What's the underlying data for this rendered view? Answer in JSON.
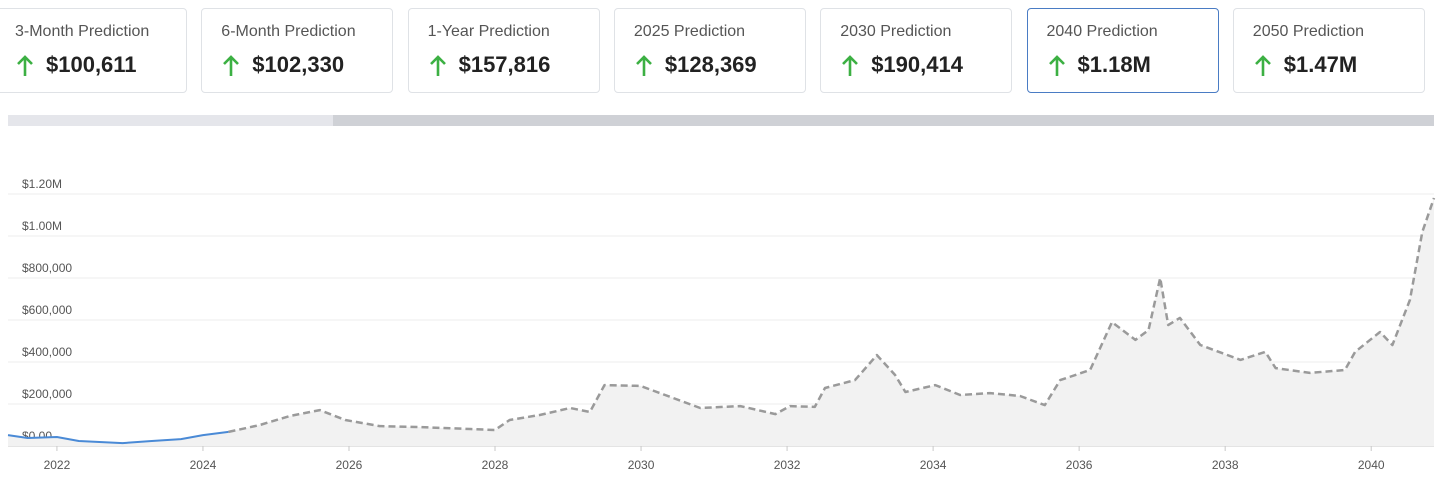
{
  "cards": [
    {
      "label": "3-Month Prediction",
      "value": "$100,611"
    },
    {
      "label": "6-Month Prediction",
      "value": "$102,330"
    },
    {
      "label": "1-Year Prediction",
      "value": "$157,816"
    },
    {
      "label": "2025 Prediction",
      "value": "$128,369"
    },
    {
      "label": "2030 Prediction",
      "value": "$190,414"
    },
    {
      "label": "2040 Prediction",
      "value": "$1.18M"
    },
    {
      "label": "2050 Prediction",
      "value": "$1.47M"
    }
  ],
  "chart_data": {
    "type": "line",
    "xlim": [
      2021.33,
      2040.86
    ],
    "xticks": [
      2022,
      2024,
      2026,
      2028,
      2030,
      2032,
      2034,
      2036,
      2038,
      2040
    ],
    "ylim": [
      0,
      1200000
    ],
    "yticks": [
      {
        "value": 0,
        "label": "$0.00"
      },
      {
        "value": 200000,
        "label": "$200,000"
      },
      {
        "value": 400000,
        "label": "$400,000"
      },
      {
        "value": 600000,
        "label": "$600,000"
      },
      {
        "value": 800000,
        "label": "$800,000"
      },
      {
        "value": 1000000,
        "label": "$1.00M"
      },
      {
        "value": 1200000,
        "label": "$1.20M"
      }
    ],
    "grid": true,
    "series": [
      {
        "color": "#4a8ad6",
        "dashed": false,
        "x": [
          2021.33,
          2021.6,
          2022,
          2022.3,
          2022.9,
          2023.3,
          2023.7,
          2024,
          2024.35
        ],
        "values": [
          52000,
          38000,
          43000,
          24000,
          14000,
          24000,
          33000,
          52000,
          67000
        ]
      },
      {
        "color": "#9a9a9a",
        "dashed": true,
        "x": [
          2024.35,
          2024.78,
          2025.19,
          2025.6,
          2025.95,
          2026.42,
          2026.97,
          2027.66,
          2028.0,
          2028.2,
          2028.62,
          2029.03,
          2029.3,
          2029.5,
          2029.99,
          2030.33,
          2030.81,
          2031.36,
          2031.84,
          2032.04,
          2032.38,
          2032.52,
          2032.93,
          2033.23,
          2033.48,
          2033.62,
          2034.03,
          2034.37,
          2034.78,
          2035.19,
          2035.53,
          2035.74,
          2036.15,
          2036.45,
          2036.77,
          2036.95,
          2037.11,
          2037.22,
          2037.38,
          2037.66,
          2038.21,
          2038.55,
          2038.69,
          2039.16,
          2039.64,
          2039.78,
          2040.12,
          2040.29,
          2040.53,
          2040.7,
          2040.86
        ],
        "values": [
          67000,
          100000,
          143000,
          171000,
          124000,
          95000,
          90000,
          81000,
          76000,
          124000,
          148000,
          181000,
          162000,
          290000,
          286000,
          243000,
          181000,
          190000,
          152000,
          190000,
          186000,
          276000,
          314000,
          433000,
          338000,
          257000,
          290000,
          243000,
          252000,
          238000,
          195000,
          314000,
          362000,
          590000,
          505000,
          552000,
          800000,
          576000,
          610000,
          481000,
          410000,
          448000,
          371000,
          348000,
          362000,
          448000,
          543000,
          481000,
          695000,
          1019000,
          1181000
        ]
      }
    ]
  }
}
